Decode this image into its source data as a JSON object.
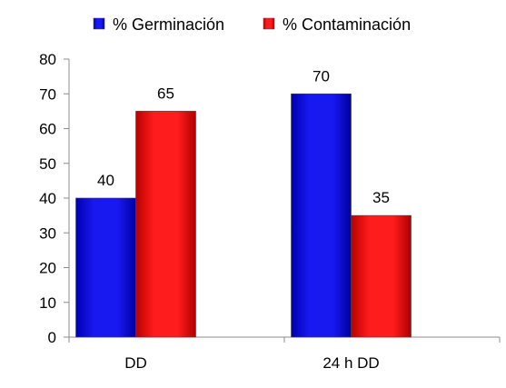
{
  "chart_data": {
    "type": "bar",
    "title": "",
    "xlabel": "",
    "ylabel": "",
    "categories": [
      "DD",
      "24 h DD"
    ],
    "series": [
      {
        "name": "% Germinación",
        "values": [
          40,
          70
        ],
        "color": "#1010e0"
      },
      {
        "name": "% Contaminación",
        "values": [
          65,
          35
        ],
        "color": "#ee1111"
      }
    ],
    "ylim": [
      0,
      80
    ],
    "yticks": [
      "0",
      "10",
      "20",
      "30",
      "40",
      "50",
      "60",
      "70",
      "80"
    ],
    "grid": false,
    "legend": "top",
    "data_labels": true
  }
}
